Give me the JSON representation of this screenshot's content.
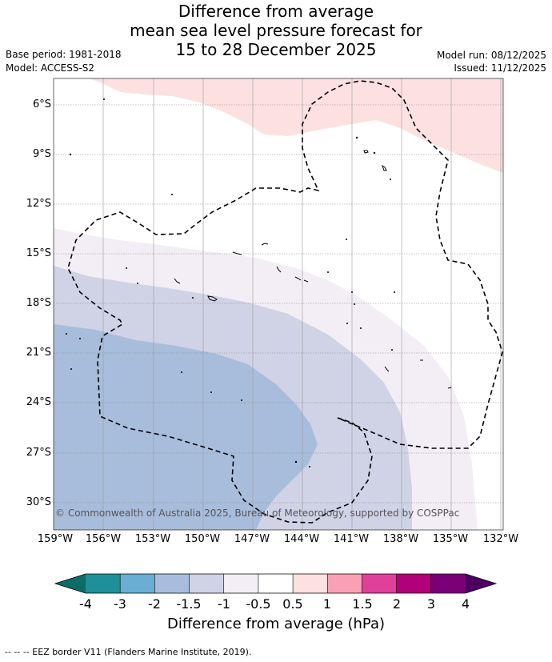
{
  "header": {
    "title_lines": [
      "Difference from average",
      "mean sea level pressure forecast for",
      "15 to 28 December 2025"
    ],
    "base_period": "Base period: 1981-2018",
    "model": "Model: ACCESS-S2",
    "model_run": "Model run: 08/12/2025",
    "issued": "Issued: 11/12/2025"
  },
  "map": {
    "lon_labels": [
      "159°W",
      "156°W",
      "153°W",
      "150°W",
      "147°W",
      "144°W",
      "141°W",
      "138°W",
      "135°W",
      "132°W"
    ],
    "lat_labels": [
      "6°S",
      "9°S",
      "12°S",
      "15°S",
      "18°S",
      "21°S",
      "24°S",
      "27°S",
      "30°S"
    ],
    "credit": "© Commonwealth of Australia 2025, Bureau of Meteorology, supported by COSPPac",
    "zones": [
      {
        "range": "0.5 to 1",
        "color": "#fde0e0",
        "location": "north-east"
      },
      {
        "range": "-0.5 to 0.5",
        "color": "#ffffff",
        "location": "north"
      },
      {
        "range": "-1 to -0.5",
        "color": "#f3eef5",
        "location": "central"
      },
      {
        "range": "-1.5 to -1",
        "color": "#d0d2e6",
        "location": "south-west"
      },
      {
        "range": "-2 to -1.5",
        "color": "#a8bddb",
        "location": "far south-west"
      }
    ]
  },
  "colorbar": {
    "tick_labels": [
      "-4",
      "-3",
      "-2",
      "-1.5",
      "-1",
      "-0.5",
      "0.5",
      "1",
      "1.5",
      "2",
      "3",
      "4"
    ],
    "colors": [
      "#1f8f99",
      "#6aaed3",
      "#a8bddb",
      "#d0d2e6",
      "#f3eef5",
      "#ffffff",
      "#fde0e0",
      "#f9a0b4",
      "#e0409a",
      "#b0007a",
      "#7a0078"
    ],
    "extend_low_color": "#0d6b68",
    "extend_high_color": "#4b0060",
    "label": "Difference from average (hPa)"
  },
  "footnote": "-- -- -- EEZ border V11 (Flanders Marine Institute, 2019)."
}
